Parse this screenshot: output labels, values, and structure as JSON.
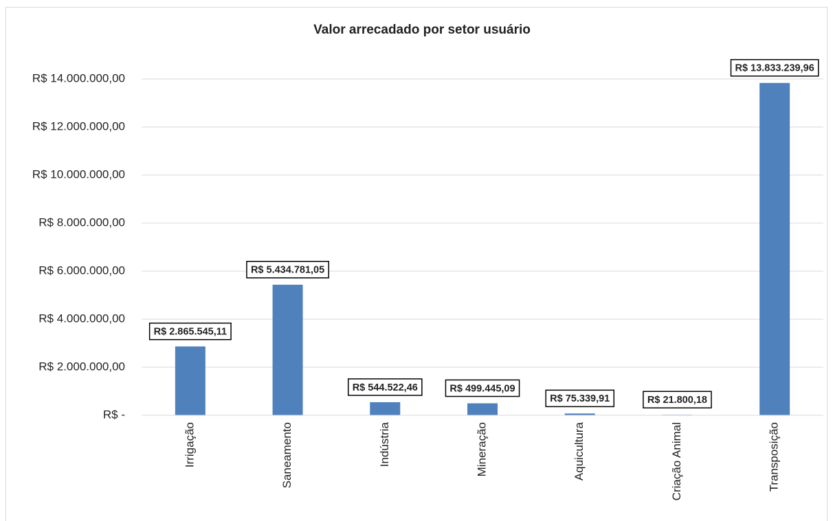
{
  "chart_data": {
    "type": "bar",
    "title": "Valor arrecadado por setor usuário",
    "categories": [
      "Irrigação",
      "Saneamento",
      "Indústria",
      "Mineração",
      "Aquicultura",
      "Criação Animal",
      "Transposição"
    ],
    "values": [
      2865545.11,
      5434781.05,
      544522.46,
      499445.09,
      75339.91,
      21800.18,
      13833239.96
    ],
    "value_labels": [
      "R$ 2.865.545,11",
      "R$ 5.434.781,05",
      "R$ 544.522,46",
      "R$ 499.445,09",
      "R$ 75.339,91",
      "R$ 21.800,18",
      "R$ 13.833.239,96"
    ],
    "color": "#4f81bd",
    "ylim": [
      0,
      14000000
    ],
    "yticks": [
      {
        "value": 0,
        "label": "R$ -"
      },
      {
        "value": 2000000,
        "label": "R$ 2.000.000,00"
      },
      {
        "value": 4000000,
        "label": "R$ 4.000.000,00"
      },
      {
        "value": 6000000,
        "label": "R$ 6.000.000,00"
      },
      {
        "value": 8000000,
        "label": "R$ 8.000.000,00"
      },
      {
        "value": 10000000,
        "label": "R$ 10.000.000,00"
      },
      {
        "value": 12000000,
        "label": "R$ 12.000.000,00"
      },
      {
        "value": 14000000,
        "label": "R$ 14.000.000,00"
      }
    ],
    "grid": true
  }
}
